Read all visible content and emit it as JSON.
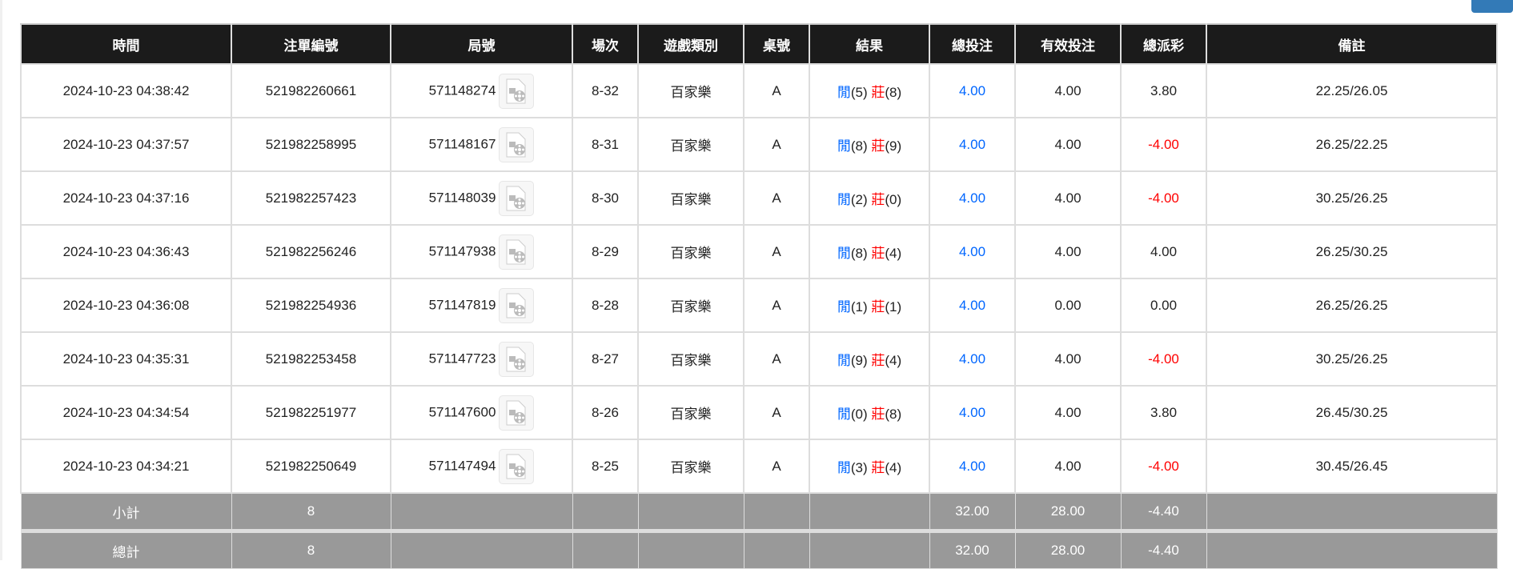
{
  "columns": [
    "時間",
    "注單編號",
    "局號",
    "場次",
    "遊戲類別",
    "桌號",
    "結果",
    "總投注",
    "有效投注",
    "總派彩",
    "備註"
  ],
  "rows": [
    {
      "time": "2024-10-23 04:38:42",
      "bet_id": "521982260661",
      "round": "571148274",
      "shoe": "8-32",
      "game": "百家樂",
      "table": "A",
      "player_label": "閒",
      "player": "(5)",
      "banker_label": "莊",
      "banker": "(8)",
      "total_bet": "4.00",
      "valid_bet": "4.00",
      "payout": "3.80",
      "payout_neg": false,
      "note": "22.25/26.05"
    },
    {
      "time": "2024-10-23 04:37:57",
      "bet_id": "521982258995",
      "round": "571148167",
      "shoe": "8-31",
      "game": "百家樂",
      "table": "A",
      "player_label": "閒",
      "player": "(8)",
      "banker_label": "莊",
      "banker": "(9)",
      "total_bet": "4.00",
      "valid_bet": "4.00",
      "payout": "-4.00",
      "payout_neg": true,
      "note": "26.25/22.25"
    },
    {
      "time": "2024-10-23 04:37:16",
      "bet_id": "521982257423",
      "round": "571148039",
      "shoe": "8-30",
      "game": "百家樂",
      "table": "A",
      "player_label": "閒",
      "player": "(2)",
      "banker_label": "莊",
      "banker": "(0)",
      "total_bet": "4.00",
      "valid_bet": "4.00",
      "payout": "-4.00",
      "payout_neg": true,
      "note": "30.25/26.25"
    },
    {
      "time": "2024-10-23 04:36:43",
      "bet_id": "521982256246",
      "round": "571147938",
      "shoe": "8-29",
      "game": "百家樂",
      "table": "A",
      "player_label": "閒",
      "player": "(8)",
      "banker_label": "莊",
      "banker": "(4)",
      "total_bet": "4.00",
      "valid_bet": "4.00",
      "payout": "4.00",
      "payout_neg": false,
      "note": "26.25/30.25"
    },
    {
      "time": "2024-10-23 04:36:08",
      "bet_id": "521982254936",
      "round": "571147819",
      "shoe": "8-28",
      "game": "百家樂",
      "table": "A",
      "player_label": "閒",
      "player": "(1)",
      "banker_label": "莊",
      "banker": "(1)",
      "total_bet": "4.00",
      "valid_bet": "0.00",
      "payout": "0.00",
      "payout_neg": false,
      "note": "26.25/26.25"
    },
    {
      "time": "2024-10-23 04:35:31",
      "bet_id": "521982253458",
      "round": "571147723",
      "shoe": "8-27",
      "game": "百家樂",
      "table": "A",
      "player_label": "閒",
      "player": "(9)",
      "banker_label": "莊",
      "banker": "(4)",
      "total_bet": "4.00",
      "valid_bet": "4.00",
      "payout": "-4.00",
      "payout_neg": true,
      "note": "30.25/26.25"
    },
    {
      "time": "2024-10-23 04:34:54",
      "bet_id": "521982251977",
      "round": "571147600",
      "shoe": "8-26",
      "game": "百家樂",
      "table": "A",
      "player_label": "閒",
      "player": "(0)",
      "banker_label": "莊",
      "banker": "(8)",
      "total_bet": "4.00",
      "valid_bet": "4.00",
      "payout": "3.80",
      "payout_neg": false,
      "note": "26.45/30.25"
    },
    {
      "time": "2024-10-23 04:34:21",
      "bet_id": "521982250649",
      "round": "571147494",
      "shoe": "8-25",
      "game": "百家樂",
      "table": "A",
      "player_label": "閒",
      "player": "(3)",
      "banker_label": "莊",
      "banker": "(4)",
      "total_bet": "4.00",
      "valid_bet": "4.00",
      "payout": "-4.00",
      "payout_neg": true,
      "note": "30.45/26.45"
    }
  ],
  "subtotal": {
    "label": "小計",
    "count": "8",
    "total_bet": "32.00",
    "valid_bet": "28.00",
    "payout": "-4.40"
  },
  "grand_total": {
    "label": "總計",
    "count": "8",
    "total_bet": "32.00",
    "valid_bet": "28.00",
    "payout": "-4.40"
  },
  "colors": {
    "header_bg": "#1b1b1b",
    "blue": "#0066ff",
    "red": "#ff0000",
    "summary_bg": "#999999",
    "button": "#337ab7"
  }
}
